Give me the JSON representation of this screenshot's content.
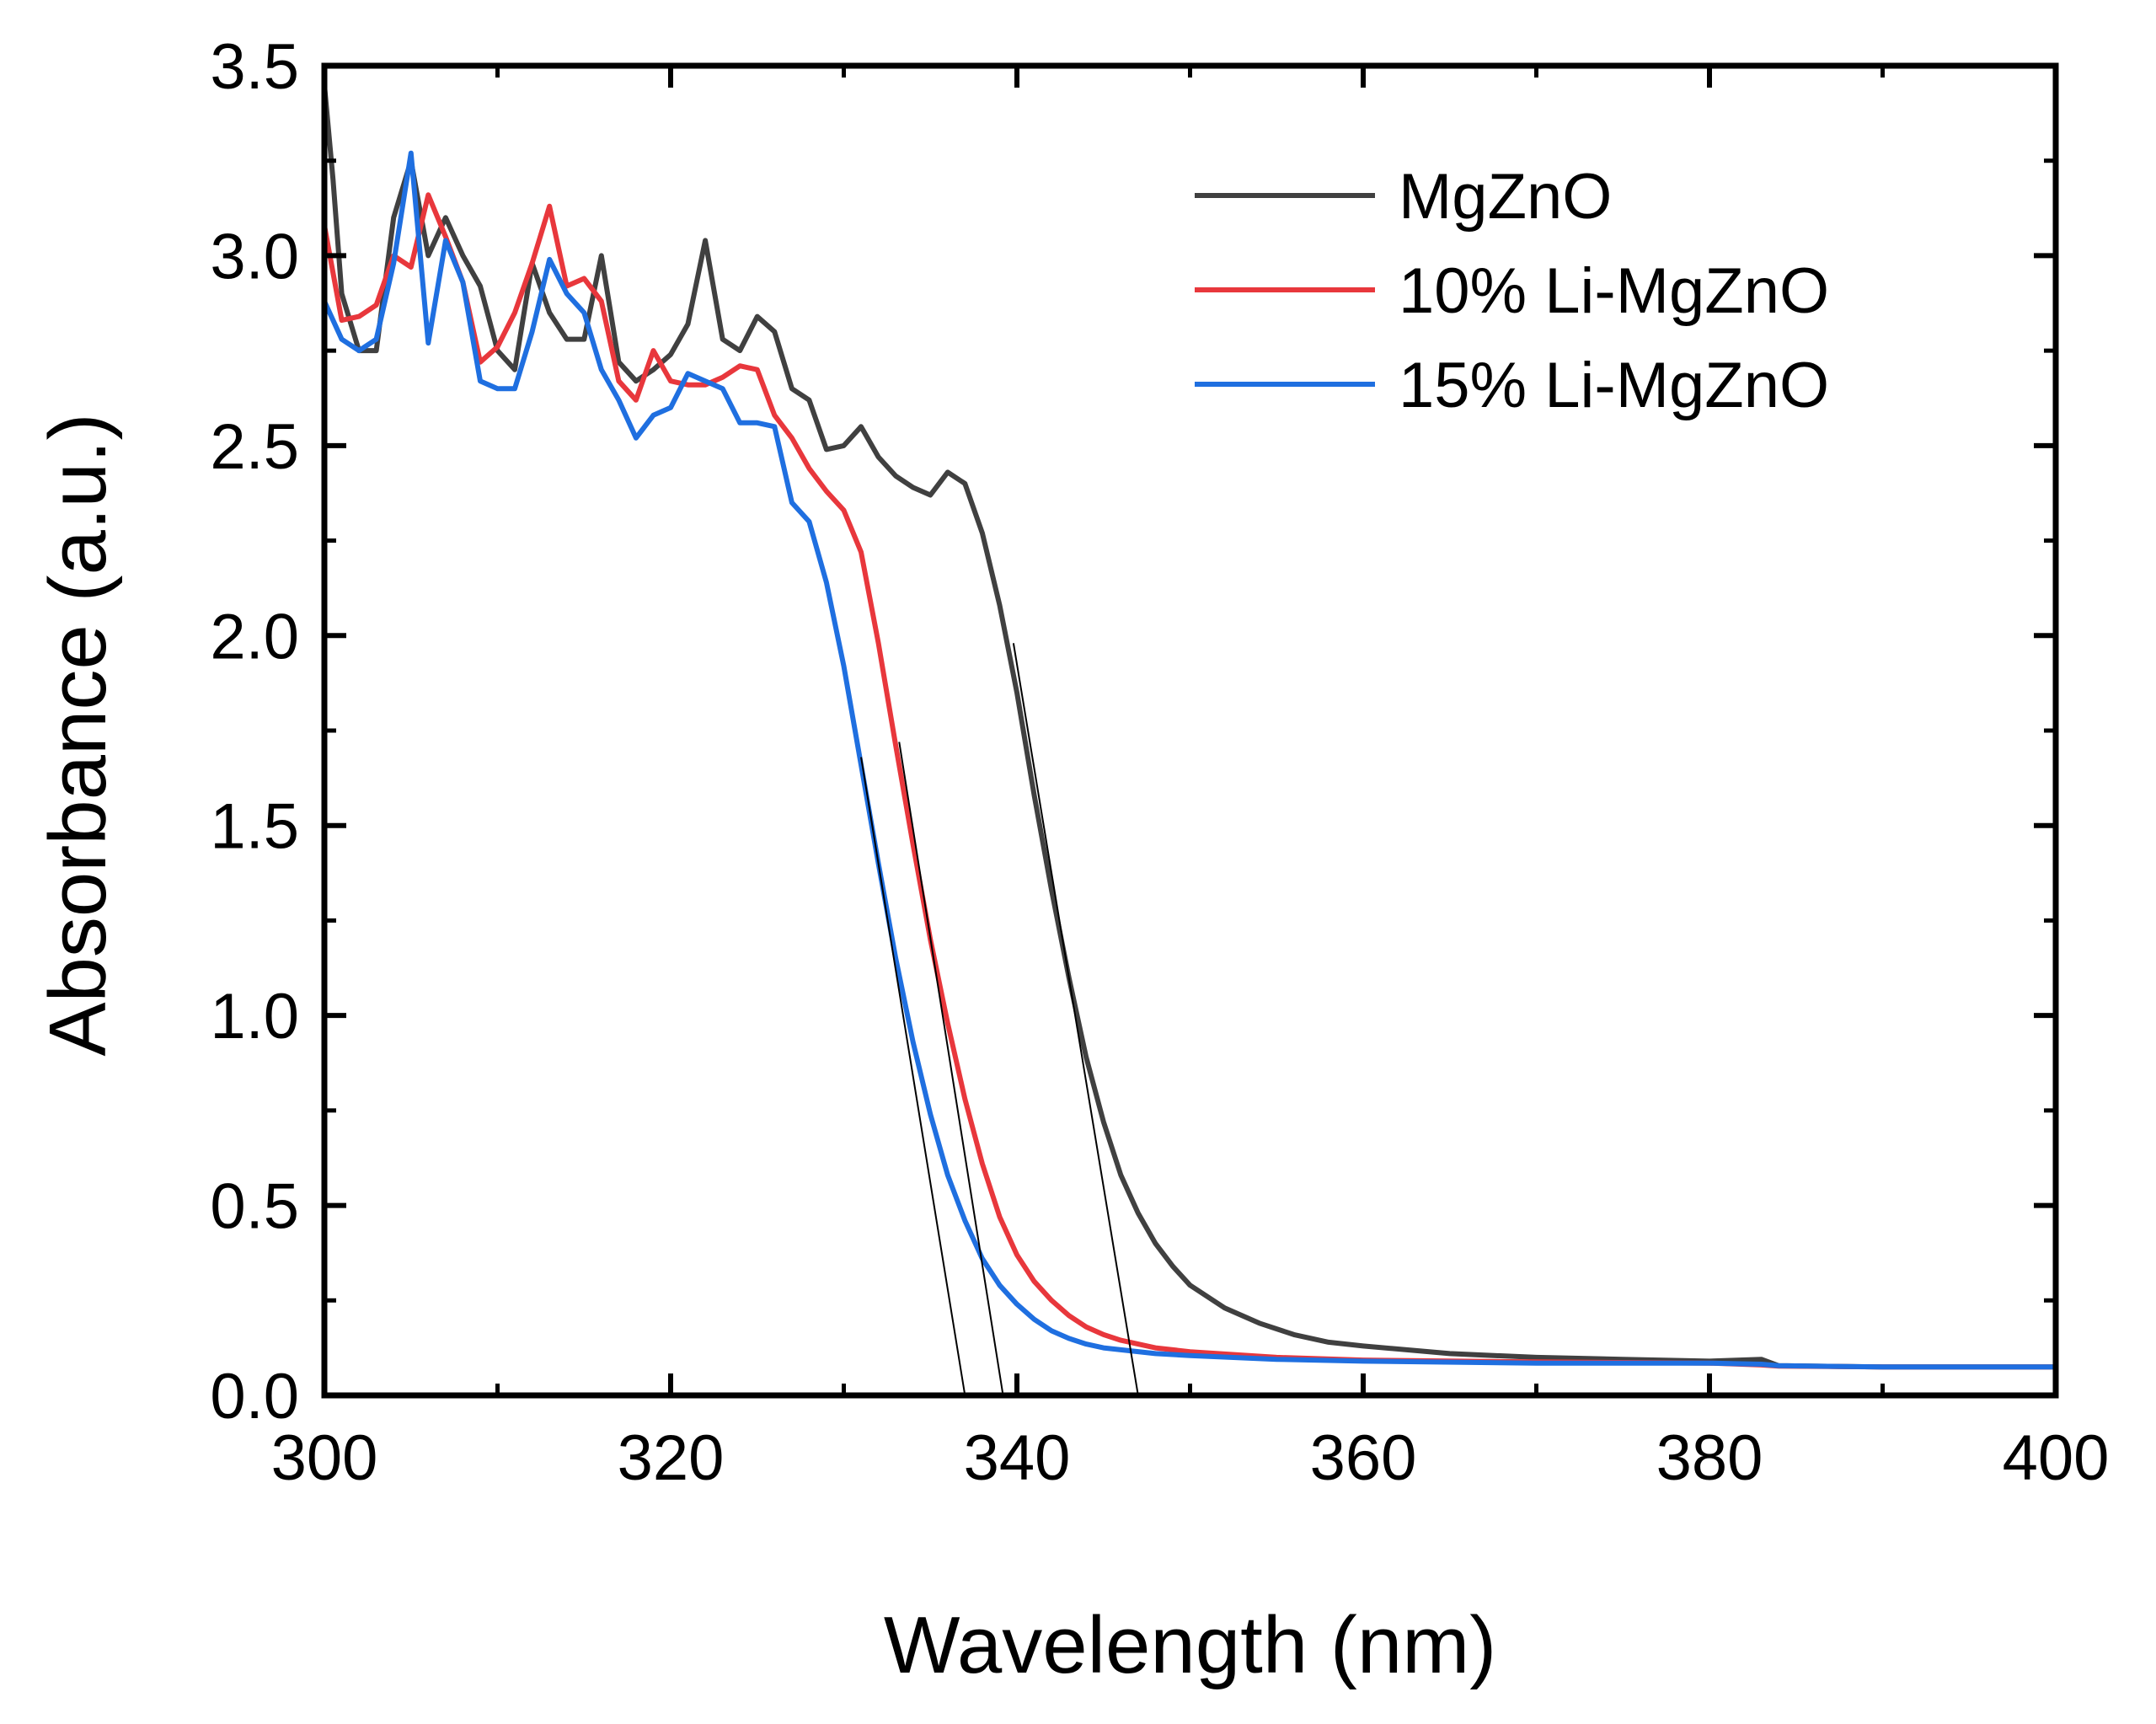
{
  "chart_data": {
    "type": "line",
    "xlabel": "Wavelength (nm)",
    "ylabel": "Absorbance (a.u.)",
    "xlim": [
      300,
      400
    ],
    "ylim": [
      0.0,
      3.5
    ],
    "x_ticks": [
      300,
      320,
      340,
      360,
      380,
      400
    ],
    "x_tick_labels": [
      "300",
      "320",
      "340",
      "360",
      "380",
      "400"
    ],
    "y_ticks": [
      0.0,
      0.5,
      1.0,
      1.5,
      2.0,
      2.5,
      3.0,
      3.5
    ],
    "y_tick_labels": [
      "0.0",
      "0.5",
      "1.0",
      "1.5",
      "2.0",
      "2.5",
      "3.0",
      "3.5"
    ],
    "grid": false,
    "legend_position": "top-right",
    "series": [
      {
        "name": "MgZnO",
        "color": "#404040",
        "points": [
          [
            300,
            3.45
          ],
          [
            300.5,
            3.2
          ],
          [
            301,
            2.9
          ],
          [
            302,
            2.75
          ],
          [
            303,
            2.75
          ],
          [
            304,
            3.1
          ],
          [
            305,
            3.25
          ],
          [
            306,
            3.0
          ],
          [
            307,
            3.1
          ],
          [
            308,
            3.0
          ],
          [
            309,
            2.92
          ],
          [
            310,
            2.75
          ],
          [
            311,
            2.7
          ],
          [
            312,
            2.98
          ],
          [
            313,
            2.85
          ],
          [
            314,
            2.78
          ],
          [
            315,
            2.78
          ],
          [
            316,
            3.0
          ],
          [
            317,
            2.72
          ],
          [
            318,
            2.67
          ],
          [
            319,
            2.7
          ],
          [
            320,
            2.74
          ],
          [
            321,
            2.82
          ],
          [
            322,
            3.04
          ],
          [
            323,
            2.78
          ],
          [
            324,
            2.75
          ],
          [
            325,
            2.84
          ],
          [
            326,
            2.8
          ],
          [
            327,
            2.65
          ],
          [
            328,
            2.62
          ],
          [
            329,
            2.49
          ],
          [
            330,
            2.5
          ],
          [
            331,
            2.55
          ],
          [
            332,
            2.47
          ],
          [
            333,
            2.42
          ],
          [
            334,
            2.39
          ],
          [
            335,
            2.37
          ],
          [
            336,
            2.43
          ],
          [
            337,
            2.4
          ],
          [
            338,
            2.27
          ],
          [
            339,
            2.08
          ],
          [
            340,
            1.85
          ],
          [
            341,
            1.58
          ],
          [
            342,
            1.33
          ],
          [
            343,
            1.1
          ],
          [
            344,
            0.89
          ],
          [
            345,
            0.72
          ],
          [
            346,
            0.58
          ],
          [
            347,
            0.48
          ],
          [
            348,
            0.4
          ],
          [
            349,
            0.34
          ],
          [
            350,
            0.29
          ],
          [
            352,
            0.23
          ],
          [
            354,
            0.19
          ],
          [
            356,
            0.16
          ],
          [
            358,
            0.14
          ],
          [
            360,
            0.13
          ],
          [
            365,
            0.11
          ],
          [
            370,
            0.1
          ],
          [
            375,
            0.095
          ],
          [
            380,
            0.09
          ],
          [
            383,
            0.095
          ],
          [
            384,
            0.078
          ],
          [
            390,
            0.075
          ],
          [
            400,
            0.075
          ]
        ]
      },
      {
        "name": "10% Li-MgZnO",
        "color": "#e8373c",
        "points": [
          [
            300,
            3.08
          ],
          [
            301,
            2.83
          ],
          [
            302,
            2.84
          ],
          [
            303,
            2.87
          ],
          [
            304,
            3.0
          ],
          [
            305,
            2.97
          ],
          [
            306,
            3.16
          ],
          [
            307,
            3.05
          ],
          [
            308,
            2.93
          ],
          [
            309,
            2.72
          ],
          [
            310,
            2.76
          ],
          [
            311,
            2.85
          ],
          [
            312,
            2.98
          ],
          [
            313,
            3.13
          ],
          [
            314,
            2.92
          ],
          [
            315,
            2.94
          ],
          [
            316,
            2.88
          ],
          [
            317,
            2.67
          ],
          [
            318,
            2.62
          ],
          [
            319,
            2.75
          ],
          [
            320,
            2.67
          ],
          [
            321,
            2.66
          ],
          [
            322,
            2.66
          ],
          [
            323,
            2.68
          ],
          [
            324,
            2.71
          ],
          [
            325,
            2.7
          ],
          [
            326,
            2.58
          ],
          [
            327,
            2.52
          ],
          [
            328,
            2.44
          ],
          [
            329,
            2.38
          ],
          [
            330,
            2.33
          ],
          [
            331,
            2.22
          ],
          [
            332,
            1.98
          ],
          [
            333,
            1.71
          ],
          [
            334,
            1.45
          ],
          [
            335,
            1.2
          ],
          [
            336,
            0.98
          ],
          [
            337,
            0.78
          ],
          [
            338,
            0.61
          ],
          [
            339,
            0.47
          ],
          [
            340,
            0.37
          ],
          [
            341,
            0.3
          ],
          [
            342,
            0.25
          ],
          [
            343,
            0.21
          ],
          [
            344,
            0.18
          ],
          [
            345,
            0.16
          ],
          [
            346,
            0.145
          ],
          [
            348,
            0.125
          ],
          [
            350,
            0.115
          ],
          [
            355,
            0.1
          ],
          [
            360,
            0.093
          ],
          [
            370,
            0.088
          ],
          [
            380,
            0.085
          ],
          [
            383,
            0.08
          ],
          [
            384,
            0.077
          ],
          [
            390,
            0.075
          ],
          [
            400,
            0.075
          ]
        ]
      },
      {
        "name": "15% Li-MgZnO",
        "color": "#1f6fe0",
        "points": [
          [
            300,
            2.88
          ],
          [
            301,
            2.78
          ],
          [
            302,
            2.75
          ],
          [
            303,
            2.78
          ],
          [
            304,
            2.98
          ],
          [
            305,
            3.27
          ],
          [
            306,
            2.77
          ],
          [
            307,
            3.04
          ],
          [
            308,
            2.93
          ],
          [
            309,
            2.67
          ],
          [
            310,
            2.65
          ],
          [
            311,
            2.65
          ],
          [
            312,
            2.8
          ],
          [
            313,
            2.99
          ],
          [
            314,
            2.9
          ],
          [
            315,
            2.85
          ],
          [
            316,
            2.7
          ],
          [
            317,
            2.62
          ],
          [
            318,
            2.52
          ],
          [
            319,
            2.58
          ],
          [
            320,
            2.6
          ],
          [
            321,
            2.69
          ],
          [
            322,
            2.67
          ],
          [
            323,
            2.65
          ],
          [
            324,
            2.56
          ],
          [
            325,
            2.56
          ],
          [
            326,
            2.55
          ],
          [
            327,
            2.35
          ],
          [
            328,
            2.3
          ],
          [
            329,
            2.14
          ],
          [
            330,
            1.92
          ],
          [
            331,
            1.66
          ],
          [
            332,
            1.4
          ],
          [
            333,
            1.15
          ],
          [
            334,
            0.93
          ],
          [
            335,
            0.74
          ],
          [
            336,
            0.58
          ],
          [
            337,
            0.46
          ],
          [
            338,
            0.36
          ],
          [
            339,
            0.29
          ],
          [
            340,
            0.24
          ],
          [
            341,
            0.2
          ],
          [
            342,
            0.17
          ],
          [
            343,
            0.15
          ],
          [
            344,
            0.135
          ],
          [
            345,
            0.125
          ],
          [
            346,
            0.12
          ],
          [
            348,
            0.11
          ],
          [
            350,
            0.105
          ],
          [
            355,
            0.095
          ],
          [
            360,
            0.09
          ],
          [
            370,
            0.085
          ],
          [
            380,
            0.085
          ],
          [
            383,
            0.082
          ],
          [
            384,
            0.078
          ],
          [
            390,
            0.075
          ],
          [
            400,
            0.075
          ]
        ]
      }
    ],
    "tangent_lines": [
      {
        "color": "#000000",
        "points": [
          [
            331,
            1.68
          ],
          [
            337,
            0.0
          ]
        ]
      },
      {
        "color": "#000000",
        "points": [
          [
            333.2,
            1.72
          ],
          [
            339.2,
            0.0
          ]
        ]
      },
      {
        "color": "#000000",
        "points": [
          [
            339.8,
            1.98
          ],
          [
            347,
            0.0
          ]
        ]
      }
    ]
  }
}
